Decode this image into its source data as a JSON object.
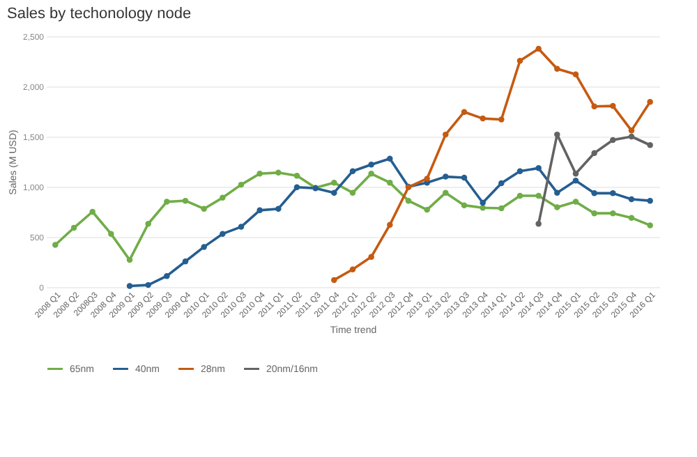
{
  "chart_data": {
    "type": "line",
    "title": "Sales by techonology node",
    "xlabel": "Time trend",
    "ylabel": "Sales (M USD)",
    "categories": [
      "2008 Q1",
      "2008 Q2",
      "2008Q3",
      "2008 Q4",
      "2009 Q1",
      "2009 Q2",
      "2009 Q3",
      "2009 Q4",
      "2010 Q1",
      "2010 Q2",
      "2010 Q3",
      "2010 Q4",
      "2011 Q1",
      "2011 Q2",
      "2011 Q3",
      "2011 Q4",
      "2012 Q1",
      "2012 Q2",
      "2012 Q3",
      "2012 Q4",
      "2013 Q1",
      "2013 Q2",
      "2013 Q3",
      "2013 Q4",
      "2014 Q1",
      "2014 Q2",
      "2014 Q3",
      "2014 Q4",
      "2015 Q1",
      "2015 Q2",
      "2015 Q3",
      "2015 Q4",
      "2016 Q1"
    ],
    "series": [
      {
        "name": "65nm",
        "color": "#70ad47",
        "values": [
          420,
          590,
          750,
          530,
          270,
          630,
          850,
          860,
          780,
          890,
          1020,
          1130,
          1140,
          1110,
          990,
          1040,
          940,
          1130,
          1040,
          860,
          770,
          940,
          815,
          790,
          785,
          910,
          910,
          795,
          850,
          735,
          735,
          690,
          615
        ]
      },
      {
        "name": "40nm",
        "color": "#255e91",
        "values": [
          null,
          null,
          null,
          null,
          10,
          20,
          110,
          255,
          400,
          530,
          600,
          765,
          780,
          995,
          985,
          940,
          1155,
          1220,
          1280,
          1000,
          1040,
          1100,
          1090,
          840,
          1035,
          1155,
          1185,
          940,
          1060,
          935,
          935,
          875,
          860
        ]
      },
      {
        "name": "28nm",
        "color": "#c55a11",
        "values": [
          null,
          null,
          null,
          null,
          null,
          null,
          null,
          null,
          null,
          null,
          null,
          null,
          null,
          null,
          null,
          70,
          175,
          300,
          620,
          995,
          1080,
          1520,
          1745,
          1680,
          1670,
          2255,
          2375,
          2175,
          2120,
          1800,
          1805,
          1560,
          1845
        ]
      },
      {
        "name": "20nm/16nm",
        "color": "#636363",
        "values": [
          null,
          null,
          null,
          null,
          null,
          null,
          null,
          null,
          null,
          null,
          null,
          null,
          null,
          null,
          null,
          null,
          null,
          null,
          null,
          null,
          null,
          null,
          null,
          null,
          null,
          null,
          630,
          1520,
          1130,
          1335,
          1465,
          1500,
          1415
        ]
      }
    ],
    "ylim": [
      0,
      2500
    ],
    "yticks": [
      0,
      500,
      {
        "value": 1000,
        "label": "1,000"
      },
      {
        "value": 1500,
        "label": "1,500"
      },
      {
        "value": 2000,
        "label": "2,000"
      },
      {
        "value": 2500,
        "label": "2,500"
      }
    ],
    "grid": "y",
    "legend": "bottom",
    "marker": "circle",
    "line_style": "solid"
  }
}
